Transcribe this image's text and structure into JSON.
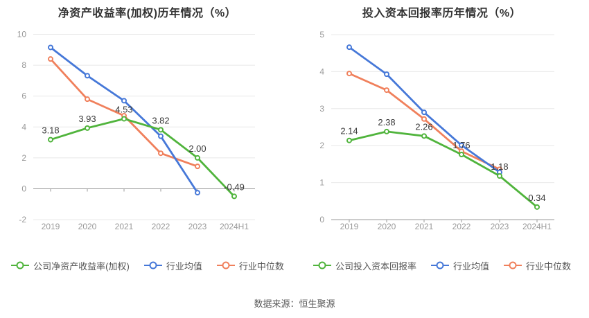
{
  "page": {
    "source_text": "数据来源：恒生聚源"
  },
  "colors": {
    "company_green": "#50b43c",
    "industry_avg_blue": "#4678d8",
    "industry_median_orange": "#f0805c",
    "grid_line": "#e8e8e8",
    "axis_line": "#999999",
    "tick_text": "#999999",
    "data_label_text": "#3a3a3a",
    "title_text": "#333333",
    "legend_text": "#555555",
    "source_color": "#5a5a5a"
  },
  "chart_data": [
    {
      "type": "line",
      "title": "净资产收益率(加权)历年情况（%）",
      "categories": [
        "2019",
        "2020",
        "2021",
        "2022",
        "2023",
        "2024H1"
      ],
      "ylim": [
        -2,
        10
      ],
      "yticks": [
        -2,
        0,
        2,
        4,
        6,
        8,
        10
      ],
      "grid": true,
      "legend_position": "bottom",
      "series": [
        {
          "name": "公司净资产收益率(加权)",
          "color": "#50b43c",
          "values": [
            3.18,
            3.93,
            4.53,
            3.82,
            2.0,
            -0.49
          ],
          "labels": [
            "3.18",
            "3.93",
            "4.53",
            "3.82",
            "2.00",
            "-0.49"
          ]
        },
        {
          "name": "行业均值",
          "color": "#4678d8",
          "values": [
            9.15,
            7.32,
            5.7,
            3.4,
            -0.25,
            null
          ]
        },
        {
          "name": "行业中位数",
          "color": "#f0805c",
          "values": [
            8.4,
            5.8,
            4.73,
            2.3,
            1.45,
            null
          ]
        }
      ]
    },
    {
      "type": "line",
      "title": "投入资本回报率历年情况（%）",
      "categories": [
        "2019",
        "2020",
        "2021",
        "2022",
        "2023",
        "2024H1"
      ],
      "ylim": [
        0,
        5
      ],
      "yticks": [
        0,
        1,
        2,
        3,
        4,
        5
      ],
      "grid": true,
      "legend_position": "bottom",
      "series": [
        {
          "name": "公司投入资本回报率",
          "color": "#50b43c",
          "values": [
            2.14,
            2.38,
            2.26,
            1.76,
            1.18,
            0.34
          ],
          "labels": [
            "2.14",
            "2.38",
            "2.26",
            "1.76",
            "1.18",
            "0.34"
          ]
        },
        {
          "name": "行业均值",
          "color": "#4678d8",
          "values": [
            4.66,
            3.93,
            2.9,
            2.01,
            1.28,
            null
          ]
        },
        {
          "name": "行业中位数",
          "color": "#f0805c",
          "values": [
            3.95,
            3.5,
            2.72,
            1.85,
            1.36,
            null
          ]
        }
      ]
    }
  ]
}
